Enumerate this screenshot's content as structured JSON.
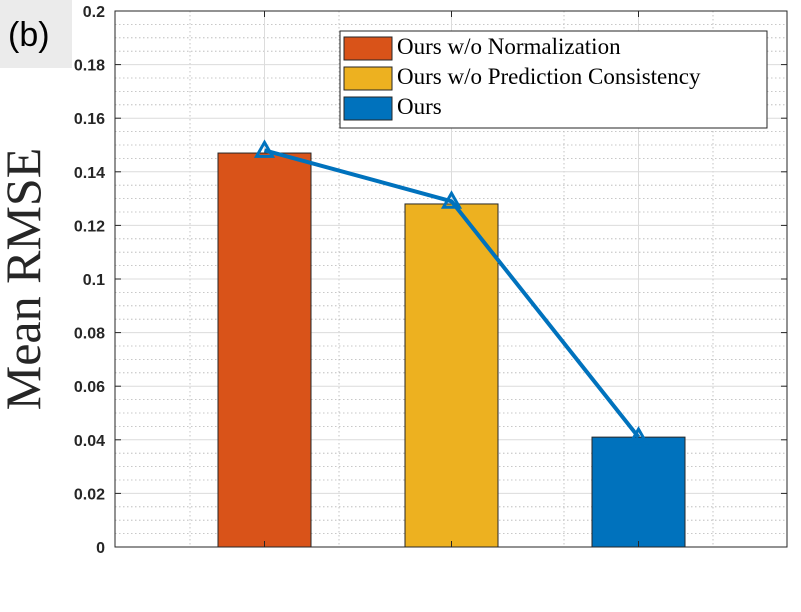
{
  "panel_label": "(b)",
  "chart_data": {
    "type": "bar",
    "categories": [
      "Ours w/o Normalization",
      "Ours w/o Prediction Consistency",
      "Ours"
    ],
    "values": [
      0.147,
      0.128,
      0.041
    ],
    "colors": [
      "#D95319",
      "#EDB120",
      "#0072BD"
    ],
    "line_overlay": {
      "values": [
        0.148,
        0.129,
        0.041
      ],
      "color": "#0072BD",
      "marker": "triangle"
    },
    "title": "",
    "xlabel": "",
    "ylabel": "Mean RMSE",
    "ylim": [
      0,
      0.2
    ],
    "yticks": [
      "0",
      "0.02",
      "0.04",
      "0.06",
      "0.08",
      "0.1",
      "0.12",
      "0.14",
      "0.16",
      "0.18",
      "0.2"
    ],
    "grid": true,
    "minor_grid": true,
    "legend_position": "top-right"
  }
}
